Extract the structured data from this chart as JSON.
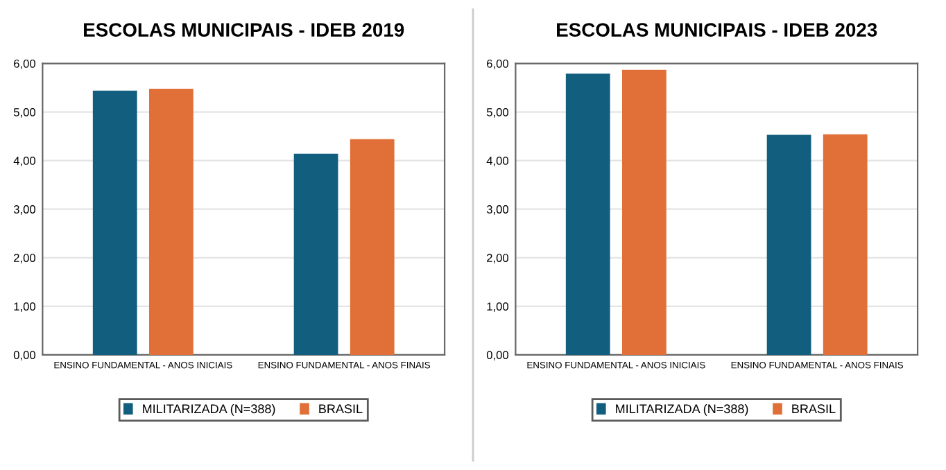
{
  "chart_data": [
    {
      "type": "bar",
      "title": "ESCOLAS MUNICIPAIS - IDEB 2019",
      "categories": [
        "ENSINO FUNDAMENTAL - ANOS INICIAIS",
        "ENSINO FUNDAMENTAL - ANOS FINAIS"
      ],
      "series": [
        {
          "name": "MILITARIZADA (N=388)",
          "color": "#125e7e",
          "values": [
            5.44,
            4.14
          ]
        },
        {
          "name": "BRASIL",
          "color": "#e07038",
          "values": [
            5.48,
            4.44
          ]
        }
      ],
      "ylim": [
        0,
        6
      ],
      "yticks": [
        {
          "value": 0,
          "label": "0,00"
        },
        {
          "value": 1,
          "label": "1,00"
        },
        {
          "value": 2,
          "label": "2,00"
        },
        {
          "value": 3,
          "label": "3,00"
        },
        {
          "value": 4,
          "label": "4,00"
        },
        {
          "value": 5,
          "label": "5,00"
        },
        {
          "value": 6,
          "label": "6,00"
        }
      ],
      "grid": "y",
      "legend": "bottom"
    },
    {
      "type": "bar",
      "title": "ESCOLAS MUNICIPAIS - IDEB 2023",
      "categories": [
        "ENSINO FUNDAMENTAL - ANOS INICIAIS",
        "ENSINO FUNDAMENTAL - ANOS FINAIS"
      ],
      "series": [
        {
          "name": "MILITARIZADA (N=388)",
          "color": "#125e7e",
          "values": [
            5.79,
            4.53
          ]
        },
        {
          "name": "BRASIL",
          "color": "#e07038",
          "values": [
            5.87,
            4.54
          ]
        }
      ],
      "ylim": [
        0,
        6
      ],
      "yticks": [
        {
          "value": 0,
          "label": "0,00"
        },
        {
          "value": 1,
          "label": "1,00"
        },
        {
          "value": 2,
          "label": "2,00"
        },
        {
          "value": 3,
          "label": "3,00"
        },
        {
          "value": 4,
          "label": "4,00"
        },
        {
          "value": 5,
          "label": "5,00"
        },
        {
          "value": 6,
          "label": "6,00"
        }
      ],
      "grid": "y",
      "legend": "bottom"
    }
  ]
}
